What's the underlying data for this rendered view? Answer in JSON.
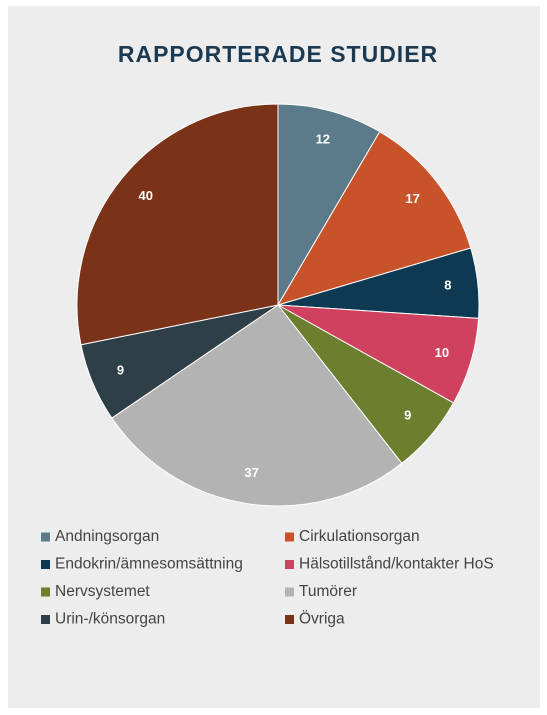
{
  "chart_data": {
    "type": "pie",
    "title": "RAPPORTERADE STUDIER",
    "categories": [
      "Andningsorgan",
      "Cirkulationsorgan",
      "Endokrin/ämnesomsättning",
      "Hälsotillstånd/kontakter HoS",
      "Nervsystemet",
      "Tumörer",
      "Urin-/könsorgan",
      "Övriga"
    ],
    "values": [
      12,
      17,
      8,
      10,
      9,
      37,
      9,
      40
    ],
    "colors": [
      "#5b7b8a",
      "#c8532a",
      "#0d3a52",
      "#d0415f",
      "#6b7f2e",
      "#b3b3b3",
      "#2f3f48",
      "#7a3318"
    ]
  }
}
